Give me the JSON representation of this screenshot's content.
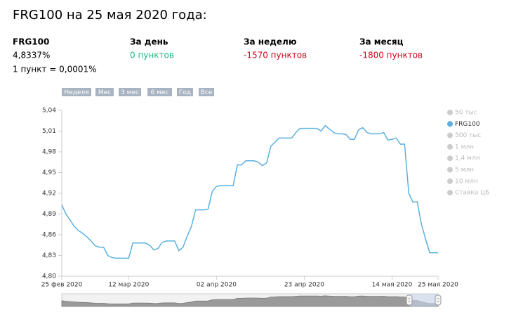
{
  "title": "FRG100 на 25 мая 2020 года:",
  "stats": [
    {
      "label": "FRG100",
      "value": "4,8337%",
      "color": "#000000"
    },
    {
      "label": "За день",
      "value": "0 пунктов",
      "color": "#1fb57a"
    },
    {
      "label": "За неделю",
      "value": "-1570 пунктов",
      "color": "#d0021b"
    },
    {
      "label": "За месяц",
      "value": "-1800 пунктов",
      "color": "#d0021b"
    }
  ],
  "note": "1 пункт = 0,0001%",
  "range_buttons": [
    "Неделя",
    "Мес",
    "3 мес",
    "6 мес",
    "Год",
    "Все"
  ],
  "chart_data": {
    "type": "line",
    "x": [
      "2020-02-25",
      "2020-02-26",
      "2020-02-27",
      "2020-02-28",
      "2020-02-29",
      "2020-03-01",
      "2020-03-02",
      "2020-03-03",
      "2020-03-04",
      "2020-03-05",
      "2020-03-06",
      "2020-03-07",
      "2020-03-08",
      "2020-03-09",
      "2020-03-10",
      "2020-03-11",
      "2020-03-12",
      "2020-03-13",
      "2020-03-14",
      "2020-03-15",
      "2020-03-16",
      "2020-03-17",
      "2020-03-18",
      "2020-03-19",
      "2020-03-20",
      "2020-03-21",
      "2020-03-22",
      "2020-03-23",
      "2020-03-24",
      "2020-03-25",
      "2020-03-26",
      "2020-03-27",
      "2020-03-28",
      "2020-03-29",
      "2020-03-30",
      "2020-03-31",
      "2020-04-01",
      "2020-04-02",
      "2020-04-03",
      "2020-04-04",
      "2020-04-05",
      "2020-04-06",
      "2020-04-07",
      "2020-04-08",
      "2020-04-09",
      "2020-04-10",
      "2020-04-11",
      "2020-04-12",
      "2020-04-13",
      "2020-04-14",
      "2020-04-15",
      "2020-04-16",
      "2020-04-17",
      "2020-04-18",
      "2020-04-19",
      "2020-04-20",
      "2020-04-21",
      "2020-04-22",
      "2020-04-23",
      "2020-04-24",
      "2020-04-25",
      "2020-04-26",
      "2020-04-27",
      "2020-04-28",
      "2020-04-29",
      "2020-04-30",
      "2020-05-01",
      "2020-05-02",
      "2020-05-03",
      "2020-05-04",
      "2020-05-05",
      "2020-05-06",
      "2020-05-07",
      "2020-05-08",
      "2020-05-09",
      "2020-05-10",
      "2020-05-11",
      "2020-05-12",
      "2020-05-13",
      "2020-05-14",
      "2020-05-15",
      "2020-05-16",
      "2020-05-17",
      "2020-05-18",
      "2020-05-19",
      "2020-05-20",
      "2020-05-21",
      "2020-05-22",
      "2020-05-23",
      "2020-05-24",
      "2020-05-25"
    ],
    "series": [
      {
        "name": "50 тыс",
        "color": "#cccccc",
        "visible": false
      },
      {
        "name": "FRG100",
        "color": "#5bb0e0",
        "visible": true,
        "values": [
          4.903,
          4.89,
          4.881,
          4.872,
          4.866,
          4.862,
          4.857,
          4.851,
          4.844,
          4.842,
          4.842,
          4.83,
          4.827,
          4.826,
          4.826,
          4.826,
          4.826,
          4.848,
          4.848,
          4.848,
          4.848,
          4.845,
          4.838,
          4.84,
          4.849,
          4.851,
          4.851,
          4.851,
          4.837,
          4.842,
          4.858,
          4.872,
          4.896,
          4.896,
          4.896,
          4.897,
          4.923,
          4.93,
          4.931,
          4.931,
          4.931,
          4.931,
          4.961,
          4.961,
          4.967,
          4.967,
          4.967,
          4.965,
          4.96,
          4.964,
          4.988,
          4.994,
          5.0,
          5.0,
          5.0,
          5.0,
          5.008,
          5.014,
          5.014,
          5.014,
          5.014,
          5.014,
          5.01,
          5.018,
          5.013,
          5.008,
          5.006,
          5.006,
          5.005,
          4.998,
          4.998,
          5.012,
          5.015,
          5.008,
          5.006,
          5.006,
          5.006,
          5.008,
          4.997,
          4.998,
          5.0,
          4.991,
          4.991,
          4.92,
          4.907,
          4.908,
          4.876,
          4.854,
          4.834,
          4.834,
          4.834
        ]
      },
      {
        "name": "500 тыс",
        "color": "#cccccc",
        "visible": false
      },
      {
        "name": "1 млн",
        "color": "#cccccc",
        "visible": false
      },
      {
        "name": "1,4 млн",
        "color": "#cccccc",
        "visible": false
      },
      {
        "name": "5 млн",
        "color": "#cccccc",
        "visible": false
      },
      {
        "name": "10 млн",
        "color": "#cccccc",
        "visible": false
      },
      {
        "name": "Ставка ЦБ",
        "color": "#cccccc",
        "visible": false
      }
    ],
    "xlim": [
      "2020-02-25",
      "2020-05-25"
    ],
    "xticks": [
      {
        "value": "2020-02-25",
        "label": "25 фев 2020"
      },
      {
        "value": "2020-03-12",
        "label": "12 мар 2020"
      },
      {
        "value": "2020-04-02",
        "label": "02 апр 2020"
      },
      {
        "value": "2020-04-23",
        "label": "23 апр 2020"
      },
      {
        "value": "2020-05-14",
        "label": "14 мая 2020"
      },
      {
        "value": "2020-05-25",
        "label": "25 мая 2020"
      }
    ],
    "ylim": [
      4.8,
      5.04
    ],
    "yticks": [
      {
        "value": 4.8,
        "label": "4,80"
      },
      {
        "value": 4.83,
        "label": "4,83"
      },
      {
        "value": 4.86,
        "label": "4,86"
      },
      {
        "value": 4.89,
        "label": "4,89"
      },
      {
        "value": 4.92,
        "label": "4,92"
      },
      {
        "value": 4.95,
        "label": "4,95"
      },
      {
        "value": 4.98,
        "label": "4,98"
      },
      {
        "value": 5.01,
        "label": "5,01"
      },
      {
        "value": 5.04,
        "label": "5,04"
      }
    ],
    "grid": false,
    "legend": "right"
  }
}
